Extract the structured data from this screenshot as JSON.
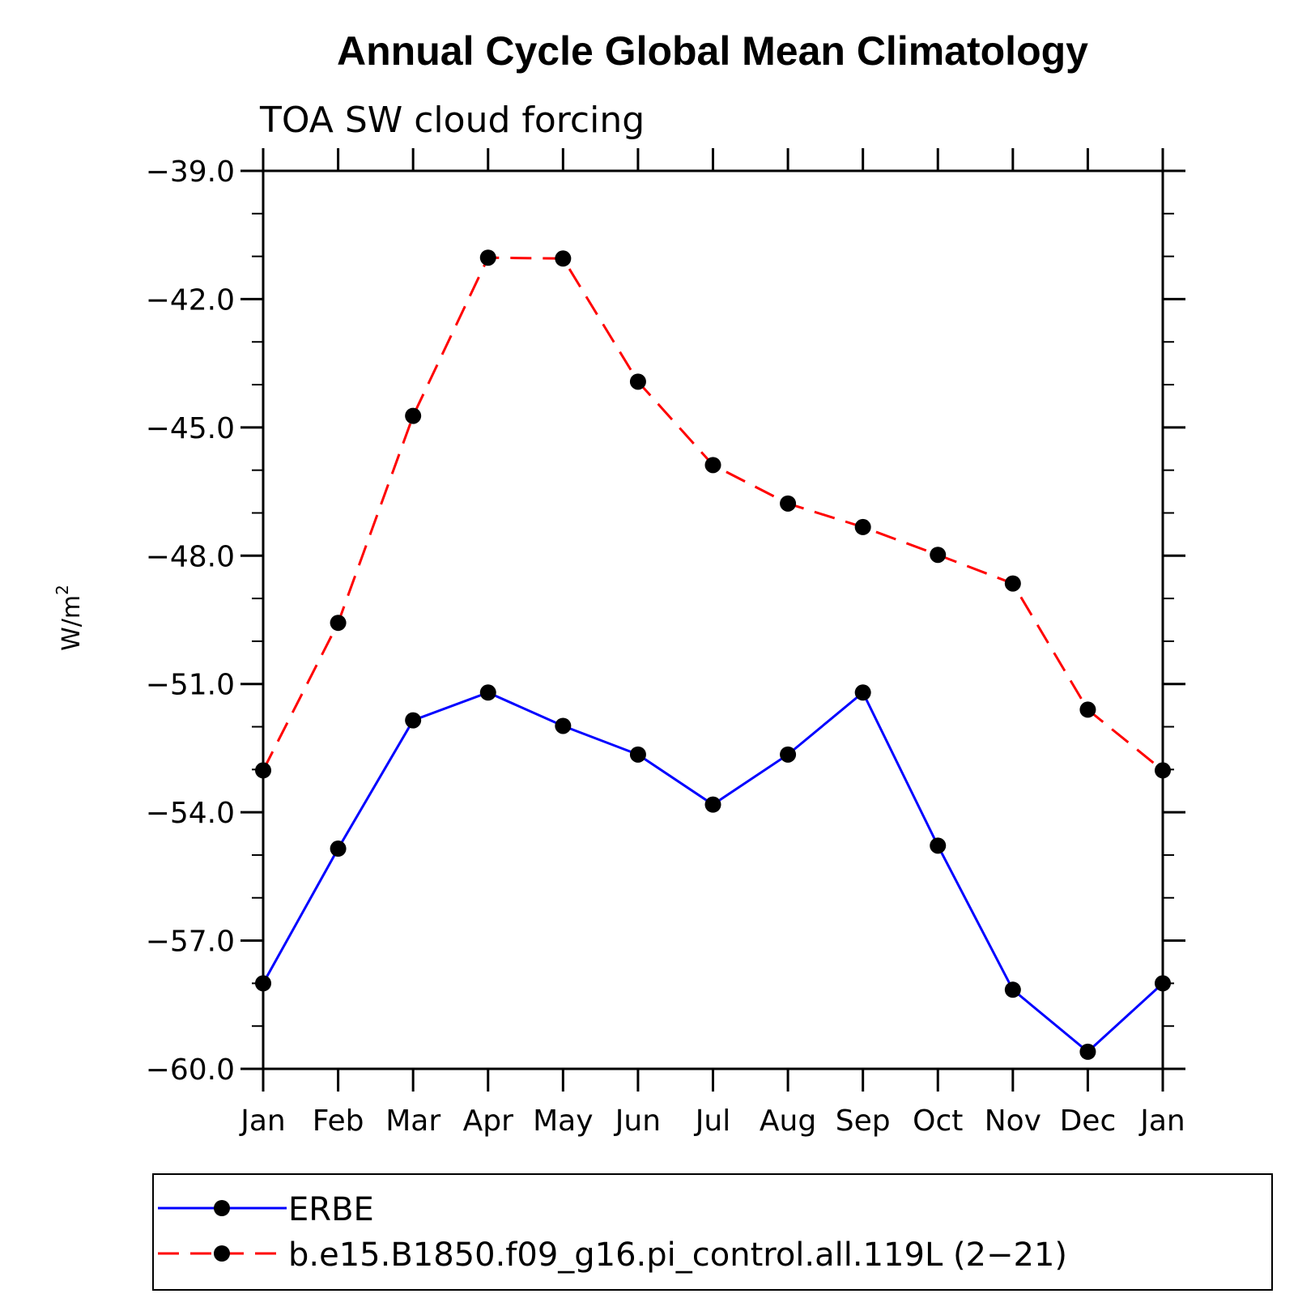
{
  "chart_data": {
    "type": "line",
    "title": "Annual Cycle Global Mean Climatology",
    "subtitle": "TOA SW cloud forcing",
    "ylabel": "W/m",
    "ylabel_sup": "2",
    "xlabel": "",
    "categories": [
      "Jan",
      "Feb",
      "Mar",
      "Apr",
      "May",
      "Jun",
      "Jul",
      "Aug",
      "Sep",
      "Oct",
      "Nov",
      "Dec",
      "Jan"
    ],
    "ylim": [
      -60.0,
      -39.0
    ],
    "yticks": [
      -60.0,
      -57.0,
      -54.0,
      -51.0,
      -48.0,
      -45.0,
      -42.0,
      -39.0
    ],
    "ytick_labels": [
      "−60.0",
      "−57.0",
      "−54.0",
      "−51.0",
      "−48.0",
      "−45.0",
      "−42.0",
      "−39.0"
    ],
    "y_minor_step": 1.0,
    "grid": false,
    "legend_position": "bottom",
    "series": [
      {
        "name": "ERBE",
        "color": "#0000ff",
        "dash": "solid",
        "marker": "filled-circle",
        "values": [
          -58.0,
          -54.85,
          -51.85,
          -51.2,
          -51.98,
          -52.65,
          -53.82,
          -52.65,
          -51.2,
          -54.78,
          -58.15,
          -59.6,
          -58.0
        ]
      },
      {
        "name": "b.e15.B1850.f09_g16.pi_control.all.119L (2−21)",
        "color": "#ff0000",
        "dash": "dashed",
        "marker": "filled-circle",
        "values": [
          -53.02,
          -49.57,
          -44.73,
          -41.03,
          -41.05,
          -43.93,
          -45.88,
          -46.78,
          -47.33,
          -47.98,
          -48.65,
          -51.6,
          -53.02
        ]
      }
    ]
  }
}
